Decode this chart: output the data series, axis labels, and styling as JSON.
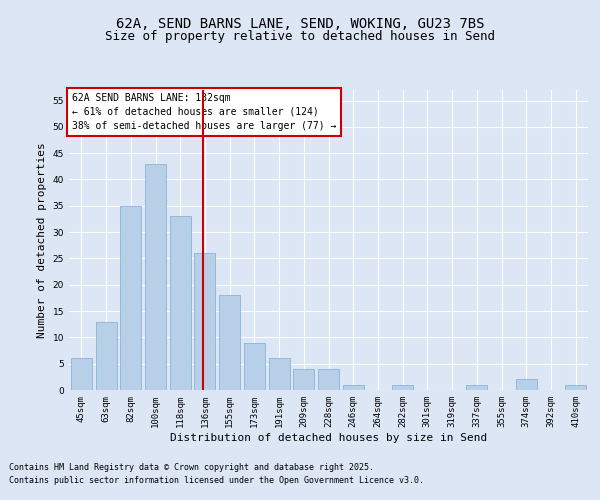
{
  "title_line1": "62A, SEND BARNS LANE, SEND, WOKING, GU23 7BS",
  "title_line2": "Size of property relative to detached houses in Send",
  "xlabel": "Distribution of detached houses by size in Send",
  "ylabel": "Number of detached properties",
  "categories": [
    "45sqm",
    "63sqm",
    "82sqm",
    "100sqm",
    "118sqm",
    "136sqm",
    "155sqm",
    "173sqm",
    "191sqm",
    "209sqm",
    "228sqm",
    "246sqm",
    "264sqm",
    "282sqm",
    "301sqm",
    "319sqm",
    "337sqm",
    "355sqm",
    "374sqm",
    "392sqm",
    "410sqm"
  ],
  "values": [
    6,
    13,
    35,
    43,
    33,
    26,
    18,
    9,
    6,
    4,
    4,
    1,
    0,
    1,
    0,
    0,
    1,
    0,
    2,
    0,
    1
  ],
  "bar_color": "#b8cfe8",
  "bar_edge_color": "#7aadd4",
  "vline_color": "#cc0000",
  "annotation_text": "62A SEND BARNS LANE: 132sqm\n← 61% of detached houses are smaller (124)\n38% of semi-detached houses are larger (77) →",
  "annotation_box_color": "#ffffff",
  "annotation_box_edge_color": "#cc0000",
  "ylim": [
    0,
    57
  ],
  "yticks": [
    0,
    5,
    10,
    15,
    20,
    25,
    30,
    35,
    40,
    45,
    50,
    55
  ],
  "footnote_line1": "Contains HM Land Registry data © Crown copyright and database right 2025.",
  "footnote_line2": "Contains public sector information licensed under the Open Government Licence v3.0.",
  "bg_color": "#dce6f5",
  "plot_bg_color": "#dce6f5",
  "title_fontsize": 10,
  "subtitle_fontsize": 9,
  "tick_fontsize": 6.5,
  "label_fontsize": 8,
  "annotation_fontsize": 7,
  "footnote_fontsize": 6
}
